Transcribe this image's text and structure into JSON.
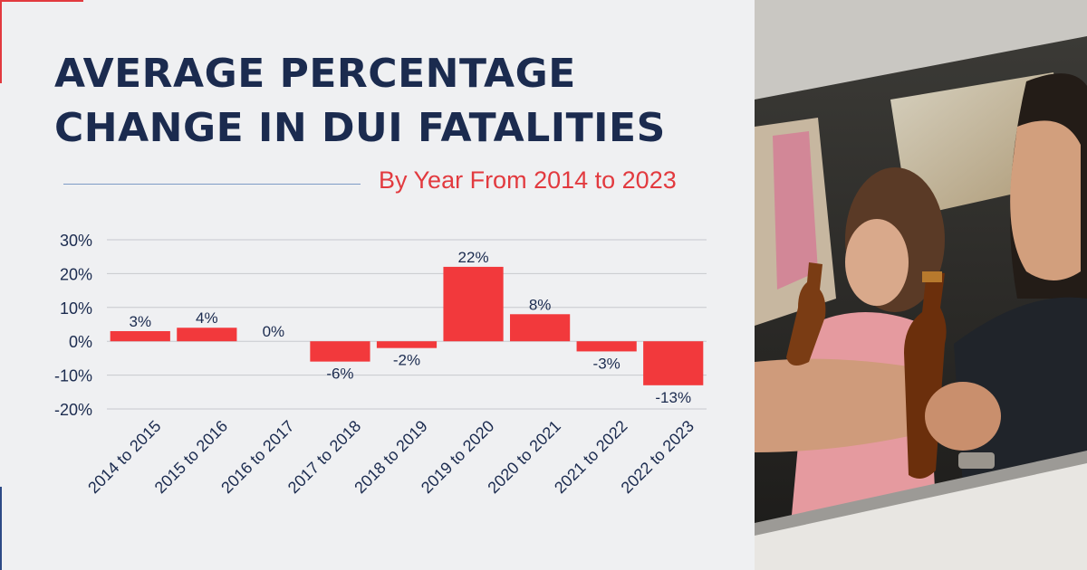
{
  "header": {
    "title_line1": "AVERAGE PERCENTAGE",
    "title_line2": "CHANGE IN DUI FATALITIES",
    "subtitle": "By Year From 2014 to 2023"
  },
  "colors": {
    "bar": "#f2393c",
    "title": "#1b2b4f",
    "accent": "#e23a3f",
    "grid": "#c7c9ce",
    "text": "#1b2b4f"
  },
  "chart_data": {
    "type": "bar",
    "title": "Average Percentage Change in DUI Fatalities",
    "subtitle": "By Year From 2014 to 2023",
    "categories": [
      "2014 to 2015",
      "2015 to 2016",
      "2016 to 2017",
      "2017 to 2018",
      "2018 to 2019",
      "2019 to 2020",
      "2020 to 2021",
      "2021 to 2022",
      "2022 to 2023"
    ],
    "values": [
      3,
      4,
      0,
      -6,
      -2,
      22,
      8,
      -3,
      -13
    ],
    "data_labels": [
      "3%",
      "4%",
      "0%",
      "-6%",
      "-2%",
      "22%",
      "8%",
      "-3%",
      "-13%"
    ],
    "yticks": [
      30,
      20,
      10,
      0,
      -10,
      -20
    ],
    "ytick_labels": [
      "30%",
      "20%",
      "10%",
      "0%",
      "-10%",
      "-20%"
    ],
    "ylim": [
      -20,
      30
    ],
    "xlabel": "",
    "ylabel": "",
    "grid": true
  },
  "photo": {
    "description_icon": "driver-with-beer-photo"
  }
}
